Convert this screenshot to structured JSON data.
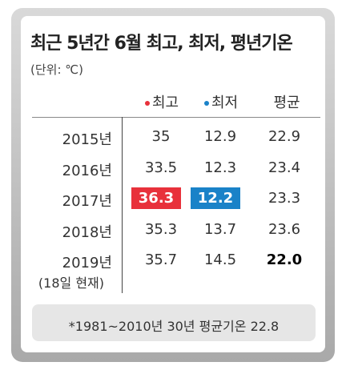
{
  "header": {
    "title": "최근 5년간 6월 최고, 최저, 평년기온",
    "unit": "(단위: ℃)"
  },
  "table": {
    "columns": [
      "최고",
      "최저",
      "평균"
    ],
    "rows": [
      {
        "year": "2015년",
        "cells": [
          "35",
          "12.9",
          "22.9"
        ]
      },
      {
        "year": "2016년",
        "cells": [
          "33.5",
          "12.3",
          "23.4"
        ]
      },
      {
        "year": "2017년",
        "cells": [
          "36.3",
          "12.2",
          "23.3"
        ]
      },
      {
        "year": "2018년",
        "cells": [
          "35.3",
          "13.7",
          "23.6"
        ]
      },
      {
        "year": "2019년",
        "note": "(18일 현재)",
        "cells": [
          "35.7",
          "14.5",
          "22.0"
        ]
      }
    ]
  },
  "footnote": "*1981~2010년 30년 평균기온 22.8"
}
